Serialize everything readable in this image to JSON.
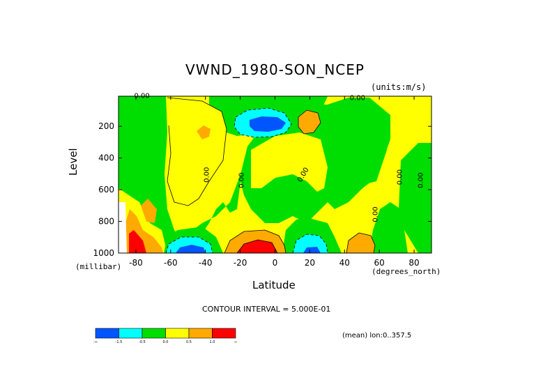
{
  "chart_data": {
    "type": "heatmap",
    "title": "VWND_1980-SON_NCEP",
    "units_label": "(units:m/s)",
    "ylabel": "Level",
    "yunit": "(millibar)",
    "xlabel": "Latitude",
    "xunit": "(degrees_north)",
    "xlim": [
      -90,
      90
    ],
    "ylim": [
      1000,
      10
    ],
    "x_ticks": [
      "-80",
      "-60",
      "-40",
      "-20",
      "0",
      "20",
      "40",
      "60",
      "80"
    ],
    "x_tick_values": [
      -80,
      -60,
      -40,
      -20,
      0,
      20,
      40,
      60,
      80
    ],
    "y_ticks": [
      "200",
      "400",
      "600",
      "800",
      "1000"
    ],
    "y_tick_values": [
      200,
      400,
      600,
      800,
      1000
    ],
    "contour_labels": [
      "0.00",
      "0.00",
      "0.00",
      "0.00",
      "0.00",
      "0.00",
      "0.00",
      "0.00"
    ],
    "contour_interval": "CONTOUR INTERVAL = 5.000E-01",
    "colorbar": {
      "colors": [
        "#0055ff",
        "#00ffff",
        "#00dd00",
        "#ffff00",
        "#ffaa00",
        "#ff0000"
      ],
      "labels": [
        "-∞",
        "-1.5",
        "-0.5",
        "0.0",
        "0.5",
        "1.0",
        "∞"
      ]
    },
    "footer": "(mean) lon:0..357.5"
  }
}
